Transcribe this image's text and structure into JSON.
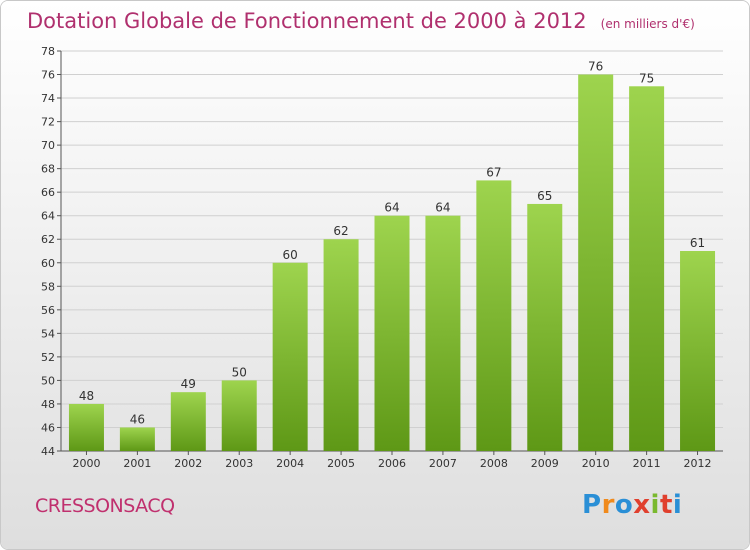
{
  "title": "Dotation Globale de Fonctionnement de 2000 à 2012",
  "subtitle": "(en milliers d'€)",
  "commune": "CRESSONSACQ",
  "logo": {
    "text": "Proxiti",
    "letters": [
      "P",
      "r",
      "o",
      "x",
      "i",
      "t",
      "i"
    ],
    "colors": [
      "#2a8fd6",
      "#f08a1c",
      "#2a8fd6",
      "#e0402e",
      "#7ab92f",
      "#e0402e",
      "#2a8fd6"
    ]
  },
  "colors": {
    "bar_top": "#9ed44e",
    "bar_bottom": "#5e9816",
    "title": "#b0306e",
    "background_top": "#ffffff",
    "background_bottom": "#dedede",
    "grid": "#d0d0d0"
  },
  "chart_data": {
    "type": "bar",
    "title": "Dotation Globale de Fonctionnement de 2000 à 2012",
    "subtitle": "(en milliers d'€)",
    "categories": [
      "2000",
      "2001",
      "2002",
      "2003",
      "2004",
      "2005",
      "2006",
      "2007",
      "2008",
      "2009",
      "2010",
      "2011",
      "2012"
    ],
    "values": [
      48,
      46,
      49,
      50,
      60,
      62,
      64,
      64,
      67,
      65,
      76,
      75,
      61
    ],
    "ylim": [
      44,
      78
    ],
    "yticks": [
      44,
      46,
      48,
      50,
      52,
      54,
      56,
      58,
      60,
      62,
      64,
      66,
      68,
      70,
      72,
      74,
      76,
      78
    ],
    "grid": true,
    "xlabel": "",
    "ylabel": ""
  }
}
